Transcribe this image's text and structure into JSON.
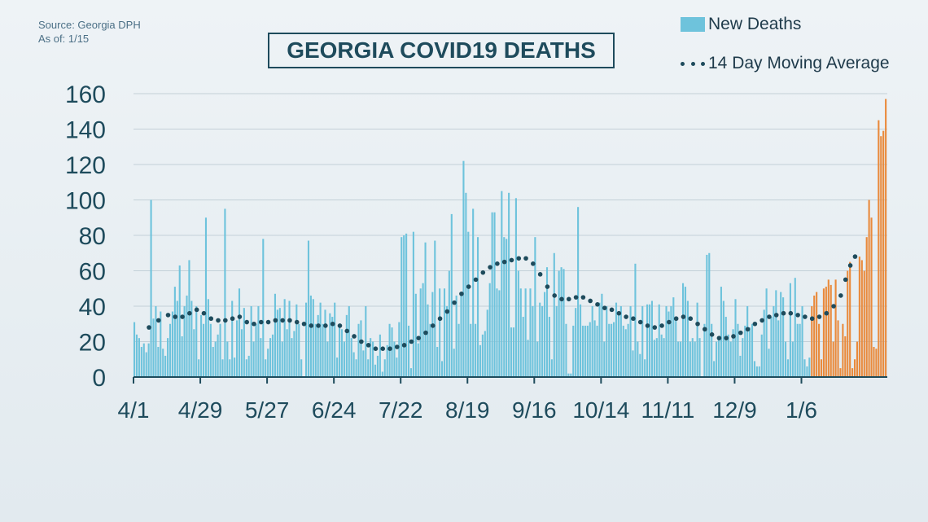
{
  "source": {
    "line1": "Source: Georgia DPH",
    "line2": "As of: 1/15"
  },
  "chart_data": {
    "type": "bar",
    "title": "GEORGIA COVID19 DEATHS",
    "xlabel": "",
    "ylabel": "",
    "ylim": [
      0,
      160
    ],
    "yticks": [
      0,
      20,
      40,
      60,
      80,
      100,
      120,
      140,
      160
    ],
    "xtick_labels": [
      "4/1",
      "4/29",
      "5/27",
      "6/24",
      "7/22",
      "8/19",
      "9/16",
      "10/14",
      "11/11",
      "12/9",
      "1/6"
    ],
    "xtick_index": [
      0,
      28,
      56,
      84,
      112,
      140,
      168,
      196,
      224,
      252,
      280
    ],
    "grid": "horizontal",
    "legend_position": "top-right",
    "colors": {
      "bars": "#6ec3dc",
      "recent_bars": "#e98a3c",
      "average": "#1e4b5c",
      "axis": "#1e4b5c"
    },
    "series": [
      {
        "name": "New Deaths",
        "type": "bar",
        "highlight_from_index": 284,
        "values": [
          31,
          24,
          22,
          17,
          19,
          14,
          19,
          100,
          33,
          40,
          17,
          37,
          16,
          12,
          22,
          30,
          37,
          51,
          43,
          63,
          23,
          40,
          46,
          66,
          43,
          27,
          40,
          10,
          35,
          30,
          90,
          44,
          30,
          17,
          20,
          24,
          30,
          10,
          95,
          20,
          10,
          43,
          11,
          32,
          50,
          27,
          39,
          10,
          12,
          40,
          20,
          30,
          40,
          22,
          78,
          10,
          16,
          22,
          24,
          47,
          38,
          39,
          20,
          44,
          27,
          43,
          22,
          26,
          41,
          30,
          10,
          0,
          42,
          77,
          46,
          44,
          30,
          35,
          42,
          30,
          38,
          20,
          36,
          34,
          42,
          11,
          30,
          27,
          20,
          35,
          40,
          22,
          14,
          10,
          30,
          32,
          15,
          40,
          10,
          22,
          20,
          7,
          12,
          24,
          3,
          10,
          18,
          30,
          28,
          20,
          11,
          31,
          79,
          80,
          81,
          29,
          5,
          82,
          47,
          19,
          50,
          53,
          76,
          41,
          30,
          48,
          77,
          17,
          50,
          9,
          50,
          40,
          60,
          92,
          16,
          46,
          30,
          46,
          122,
          104,
          82,
          30,
          95,
          30,
          79,
          18,
          24,
          26,
          38,
          53,
          93,
          93,
          50,
          49,
          105,
          79,
          78,
          104,
          28,
          28,
          101,
          60,
          50,
          34,
          50,
          21,
          50,
          40,
          79,
          20,
          42,
          40,
          48,
          62,
          34,
          10,
          70,
          40,
          60,
          62,
          61,
          30,
          2,
          2,
          29,
          39,
          96,
          41,
          29,
          29,
          29,
          31,
          40,
          32,
          29,
          42,
          47,
          20,
          40,
          30,
          30,
          31,
          42,
          35,
          40,
          29,
          27,
          30,
          40,
          15,
          64,
          20,
          13,
          40,
          10,
          41,
          41,
          43,
          21,
          22,
          41,
          24,
          22,
          40,
          37,
          40,
          45,
          32,
          20,
          20,
          53,
          51,
          43,
          20,
          22,
          20,
          42,
          22,
          0,
          30,
          69,
          70,
          30,
          9,
          20,
          21,
          51,
          43,
          34,
          24,
          20,
          27,
          44,
          30,
          12,
          22,
          29,
          40,
          28,
          30,
          9,
          6,
          6,
          24,
          38,
          50,
          16,
          34,
          40,
          49,
          32,
          48,
          45,
          20,
          10,
          53,
          20,
          56,
          30,
          30,
          40,
          10,
          6,
          11,
          40,
          46,
          48,
          30,
          10,
          50,
          51,
          55,
          52,
          20,
          55,
          32,
          5,
          30,
          23,
          60,
          65,
          5,
          10,
          20,
          68,
          66,
          60,
          79,
          100,
          90,
          17,
          16,
          145,
          136,
          139,
          157
        ]
      },
      {
        "name": "14 Day Moving Average",
        "type": "line",
        "style": "dotted",
        "points": [
          [
            6,
            28
          ],
          [
            10,
            32
          ],
          [
            14,
            35
          ],
          [
            17,
            34
          ],
          [
            20,
            34
          ],
          [
            23,
            36
          ],
          [
            26,
            38
          ],
          [
            29,
            36
          ],
          [
            32,
            33
          ],
          [
            35,
            32
          ],
          [
            38,
            32
          ],
          [
            41,
            33
          ],
          [
            44,
            34
          ],
          [
            47,
            31
          ],
          [
            50,
            30
          ],
          [
            53,
            31
          ],
          [
            56,
            31
          ],
          [
            59,
            32
          ],
          [
            62,
            32
          ],
          [
            65,
            32
          ],
          [
            68,
            31
          ],
          [
            71,
            30
          ],
          [
            74,
            29
          ],
          [
            77,
            29
          ],
          [
            80,
            29
          ],
          [
            83,
            30
          ],
          [
            86,
            29
          ],
          [
            89,
            26
          ],
          [
            92,
            23
          ],
          [
            95,
            20
          ],
          [
            98,
            18
          ],
          [
            101,
            16
          ],
          [
            104,
            16
          ],
          [
            107,
            16
          ],
          [
            110,
            17
          ],
          [
            113,
            18
          ],
          [
            116,
            20
          ],
          [
            119,
            22
          ],
          [
            122,
            25
          ],
          [
            125,
            29
          ],
          [
            128,
            33
          ],
          [
            131,
            37
          ],
          [
            134,
            42
          ],
          [
            137,
            47
          ],
          [
            140,
            51
          ],
          [
            143,
            55
          ],
          [
            146,
            59
          ],
          [
            149,
            62
          ],
          [
            152,
            64
          ],
          [
            155,
            65
          ],
          [
            158,
            66
          ],
          [
            161,
            67
          ],
          [
            164,
            67
          ],
          [
            167,
            64
          ],
          [
            170,
            58
          ],
          [
            173,
            51
          ],
          [
            176,
            46
          ],
          [
            179,
            44
          ],
          [
            182,
            44
          ],
          [
            185,
            45
          ],
          [
            188,
            45
          ],
          [
            191,
            43
          ],
          [
            194,
            41
          ],
          [
            197,
            39
          ],
          [
            200,
            38
          ],
          [
            203,
            36
          ],
          [
            206,
            34
          ],
          [
            209,
            33
          ],
          [
            212,
            31
          ],
          [
            215,
            29
          ],
          [
            218,
            28
          ],
          [
            221,
            29
          ],
          [
            224,
            31
          ],
          [
            227,
            33
          ],
          [
            230,
            34
          ],
          [
            233,
            33
          ],
          [
            236,
            30
          ],
          [
            239,
            27
          ],
          [
            242,
            24
          ],
          [
            245,
            22
          ],
          [
            248,
            22
          ],
          [
            251,
            23
          ],
          [
            254,
            25
          ],
          [
            257,
            27
          ],
          [
            260,
            30
          ],
          [
            263,
            32
          ],
          [
            266,
            34
          ],
          [
            269,
            35
          ],
          [
            272,
            36
          ],
          [
            275,
            36
          ],
          [
            278,
            35
          ],
          [
            281,
            34
          ],
          [
            284,
            33
          ],
          [
            287,
            34
          ],
          [
            290,
            36
          ],
          [
            293,
            40
          ],
          [
            296,
            46
          ],
          [
            298,
            55
          ],
          [
            300,
            63
          ],
          [
            302,
            68
          ]
        ]
      }
    ]
  }
}
